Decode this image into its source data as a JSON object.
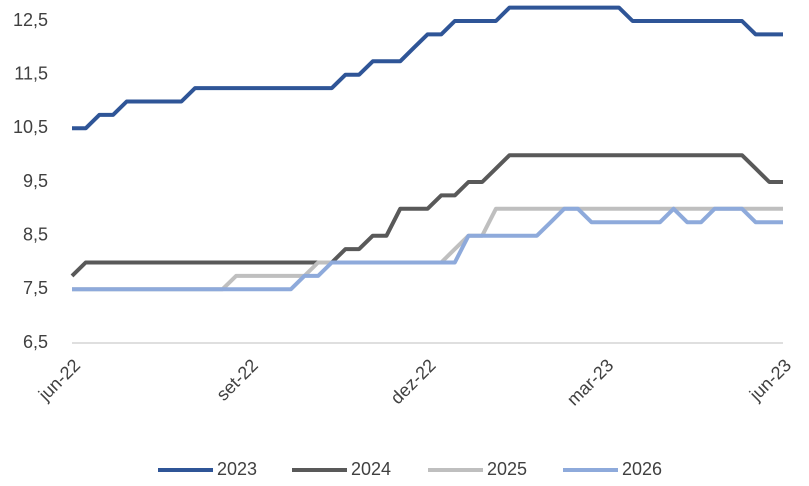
{
  "chart_data": {
    "type": "line",
    "categories": [
      "jun-22",
      null,
      null,
      null,
      null,
      null,
      null,
      null,
      null,
      null,
      null,
      null,
      null,
      "set-22",
      null,
      null,
      null,
      null,
      null,
      null,
      null,
      null,
      null,
      null,
      null,
      null,
      "dez-22",
      null,
      null,
      null,
      null,
      null,
      null,
      null,
      null,
      null,
      null,
      null,
      null,
      "mar-23",
      null,
      null,
      null,
      null,
      null,
      null,
      null,
      null,
      null,
      null,
      null,
      null,
      "jun-23"
    ],
    "series": [
      {
        "name": "2023",
        "color": "#2f5597",
        "values": [
          10.5,
          10.5,
          10.75,
          10.75,
          11,
          11,
          11,
          11,
          11,
          11.25,
          11.25,
          11.25,
          11.25,
          11.25,
          11.25,
          11.25,
          11.25,
          11.25,
          11.25,
          11.25,
          11.5,
          11.5,
          11.75,
          11.75,
          11.75,
          12,
          12.25,
          12.25,
          12.5,
          12.5,
          12.5,
          12.5,
          12.75,
          12.75,
          12.75,
          12.75,
          12.75,
          12.75,
          12.75,
          12.75,
          12.75,
          12.5,
          12.5,
          12.5,
          12.5,
          12.5,
          12.5,
          12.5,
          12.5,
          12.5,
          12.25,
          12.25,
          12.25
        ]
      },
      {
        "name": "2024",
        "color": "#595959",
        "values": [
          7.75,
          8,
          8,
          8,
          8,
          8,
          8,
          8,
          8,
          8,
          8,
          8,
          8,
          8,
          8,
          8,
          8,
          8,
          8,
          8,
          8.25,
          8.25,
          8.5,
          8.5,
          9,
          9,
          9,
          9.25,
          9.25,
          9.5,
          9.5,
          9.75,
          10,
          10,
          10,
          10,
          10,
          10,
          10,
          10,
          10,
          10,
          10,
          10,
          10,
          10,
          10,
          10,
          10,
          10,
          9.75,
          9.5,
          9.5
        ]
      },
      {
        "name": "2025",
        "color": "#bfbfbf",
        "values": [
          7.5,
          7.5,
          7.5,
          7.5,
          7.5,
          7.5,
          7.5,
          7.5,
          7.5,
          7.5,
          7.5,
          7.5,
          7.75,
          7.75,
          7.75,
          7.75,
          7.75,
          7.75,
          8,
          8,
          8,
          8,
          8,
          8,
          8,
          8,
          8,
          8,
          8.25,
          8.5,
          8.5,
          9,
          9,
          9,
          9,
          9,
          9,
          9,
          9,
          9,
          9,
          9,
          9,
          9,
          9,
          9,
          9,
          9,
          9,
          9,
          9,
          9,
          9
        ]
      },
      {
        "name": "2026",
        "color": "#8eaadb",
        "values": [
          7.5,
          7.5,
          7.5,
          7.5,
          7.5,
          7.5,
          7.5,
          7.5,
          7.5,
          7.5,
          7.5,
          7.5,
          7.5,
          7.5,
          7.5,
          7.5,
          7.5,
          7.75,
          7.75,
          8,
          8,
          8,
          8,
          8,
          8,
          8,
          8,
          8,
          8,
          8.5,
          8.5,
          8.5,
          8.5,
          8.5,
          8.5,
          8.75,
          9,
          9,
          8.75,
          8.75,
          8.75,
          8.75,
          8.75,
          8.75,
          9,
          8.75,
          8.75,
          9,
          9,
          9,
          8.75,
          8.75,
          8.75
        ]
      }
    ],
    "ylim": [
      6.5,
      12.75
    ],
    "yticks": [
      {
        "value": 6.5,
        "label": "6,5"
      },
      {
        "value": 7.5,
        "label": "7,5"
      },
      {
        "value": 8.5,
        "label": "8,5"
      },
      {
        "value": 9.5,
        "label": "9,5"
      },
      {
        "value": 10.5,
        "label": "10,5"
      },
      {
        "value": 11.5,
        "label": "11,5"
      },
      {
        "value": 12.5,
        "label": "12,5"
      }
    ],
    "grid": false,
    "legend": "bottom"
  }
}
